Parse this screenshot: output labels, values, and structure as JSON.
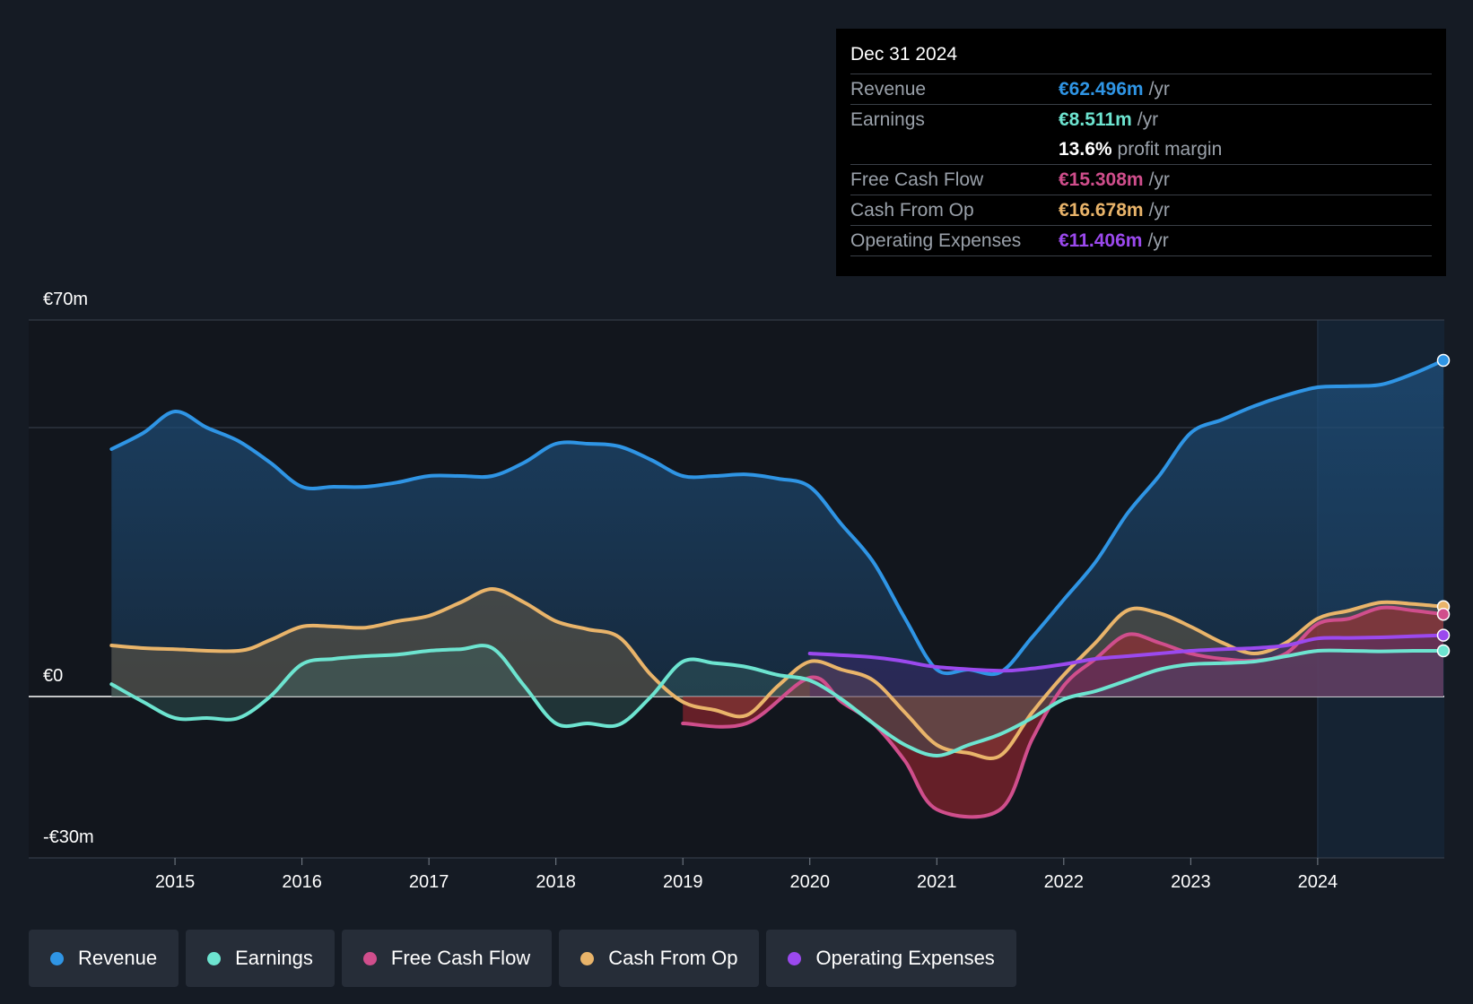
{
  "chart_data": {
    "type": "area",
    "y_axis": {
      "top_label": "€70m",
      "zero_label": "€0",
      "bottom_label": "-€30m",
      "ylim": [
        -30,
        70
      ],
      "gridlines": [
        70,
        50,
        0,
        -30
      ]
    },
    "x_ticks": [
      "2015",
      "2016",
      "2017",
      "2018",
      "2019",
      "2020",
      "2021",
      "2022",
      "2023",
      "2024"
    ],
    "xlim": [
      2014.3,
      2024.99
    ],
    "highlight_from": 2024.0,
    "series": [
      {
        "name": "Revenue",
        "color": "#2f95e5",
        "x": [
          2014.5,
          2014.75,
          2015.0,
          2015.25,
          2015.5,
          2015.75,
          2016.0,
          2016.25,
          2016.5,
          2016.75,
          2017.0,
          2017.25,
          2017.5,
          2017.75,
          2018.0,
          2018.25,
          2018.5,
          2018.75,
          2019.0,
          2019.25,
          2019.5,
          2019.75,
          2020.0,
          2020.25,
          2020.5,
          2020.75,
          2021.0,
          2021.25,
          2021.5,
          2021.75,
          2022.0,
          2022.25,
          2022.5,
          2022.75,
          2023.0,
          2023.25,
          2023.5,
          2023.75,
          2024.0,
          2024.25,
          2024.5,
          2024.75,
          2024.99
        ],
        "values": [
          46,
          49,
          53,
          50,
          47.5,
          43.5,
          39,
          39,
          39,
          39.8,
          41,
          41,
          41,
          43.5,
          47,
          47,
          46.5,
          44,
          41,
          41,
          41.3,
          40.5,
          39,
          32,
          25,
          14.5,
          5,
          5,
          4.5,
          11,
          18,
          25,
          34,
          41,
          49,
          51.5,
          54,
          56,
          57.5,
          57.7,
          58,
          60,
          62.5
        ]
      },
      {
        "name": "Earnings",
        "color": "#6de4d0",
        "x": [
          2014.5,
          2014.75,
          2015.0,
          2015.25,
          2015.5,
          2015.75,
          2016.0,
          2016.25,
          2016.5,
          2016.75,
          2017.0,
          2017.25,
          2017.5,
          2017.75,
          2018.0,
          2018.25,
          2018.5,
          2018.75,
          2019.0,
          2019.25,
          2019.5,
          2019.75,
          2020.0,
          2020.25,
          2020.5,
          2020.75,
          2021.0,
          2021.25,
          2021.5,
          2021.75,
          2022.0,
          2022.25,
          2022.5,
          2022.75,
          2023.0,
          2023.25,
          2023.5,
          2023.75,
          2024.0,
          2024.25,
          2024.5,
          2024.75,
          2024.99
        ],
        "values": [
          2.3,
          -1,
          -4,
          -4,
          -4,
          0,
          6,
          7,
          7.5,
          7.8,
          8.5,
          8.8,
          9,
          2,
          -5,
          -5,
          -5.2,
          0,
          6.5,
          6.2,
          5.5,
          4,
          3,
          -0.5,
          -5,
          -9,
          -11,
          -9,
          -7,
          -4,
          -0.5,
          1,
          3,
          5,
          6,
          6.2,
          6.5,
          7.5,
          8.5,
          8.5,
          8.4,
          8.5,
          8.5
        ]
      },
      {
        "name": "Free Cash Flow",
        "color": "#d04e8c",
        "x": [
          2019.0,
          2019.5,
          2020.0,
          2020.25,
          2020.5,
          2020.75,
          2021.0,
          2021.5,
          2021.75,
          2022.0,
          2022.25,
          2022.5,
          2022.75,
          2023.0,
          2023.25,
          2023.5,
          2023.75,
          2024.0,
          2024.25,
          2024.5,
          2024.75,
          2024.99
        ],
        "values": [
          -5,
          -5,
          3.5,
          -1,
          -5,
          -12,
          -21,
          -21,
          -8,
          2,
          7,
          11.5,
          10,
          8,
          7,
          6.7,
          8,
          13.5,
          14.5,
          16.5,
          16,
          15.3
        ]
      },
      {
        "name": "Cash From Op",
        "color": "#e9b46a",
        "x": [
          2014.5,
          2014.75,
          2015.0,
          2015.5,
          2015.75,
          2016.0,
          2016.25,
          2016.5,
          2016.75,
          2017.0,
          2017.25,
          2017.5,
          2017.75,
          2018.0,
          2018.25,
          2018.5,
          2018.75,
          2019.0,
          2019.25,
          2019.5,
          2019.75,
          2020.0,
          2020.25,
          2020.5,
          2020.75,
          2021.0,
          2021.25,
          2021.5,
          2021.75,
          2022.0,
          2022.25,
          2022.5,
          2022.75,
          2023.0,
          2023.25,
          2023.5,
          2023.75,
          2024.0,
          2024.25,
          2024.5,
          2024.75,
          2024.99
        ],
        "values": [
          9.5,
          9,
          8.8,
          8.5,
          10.5,
          13,
          13,
          12.8,
          14,
          15,
          17.5,
          20,
          17.5,
          14,
          12.5,
          11,
          4,
          -1,
          -2.5,
          -3.5,
          2,
          6.5,
          5,
          3,
          -3,
          -9,
          -10.5,
          -11,
          -3,
          4,
          10,
          16,
          15.5,
          13,
          10,
          8,
          10,
          14.5,
          16,
          17.5,
          17.2,
          16.7
        ]
      },
      {
        "name": "Operating Expenses",
        "color": "#9b49ee",
        "x": [
          2020.0,
          2020.5,
          2020.75,
          2021.0,
          2021.5,
          2021.75,
          2022.0,
          2022.25,
          2022.5,
          2022.75,
          2023.0,
          2023.25,
          2023.5,
          2023.75,
          2024.0,
          2024.25,
          2024.5,
          2024.75,
          2024.99
        ],
        "values": [
          8,
          7.3,
          6.5,
          5.5,
          4.8,
          5.2,
          6,
          7,
          7.5,
          8,
          8.5,
          8.8,
          9,
          9.5,
          10.8,
          10.9,
          11,
          11.2,
          11.4
        ]
      }
    ]
  },
  "tooltip": {
    "date": "Dec 31 2024",
    "rows": [
      {
        "label": "Revenue",
        "value": "€62.496m",
        "unit": "/yr",
        "color": "#2f95e5"
      },
      {
        "label": "Earnings",
        "value": "€8.511m",
        "unit": "/yr",
        "color": "#6de4d0"
      },
      {
        "label": "",
        "value": "13.6%",
        "unit": "profit margin",
        "color": "#ffffff"
      },
      {
        "label": "Free Cash Flow",
        "value": "€15.308m",
        "unit": "/yr",
        "color": "#d04e8c"
      },
      {
        "label": "Cash From Op",
        "value": "€16.678m",
        "unit": "/yr",
        "color": "#e9b46a"
      },
      {
        "label": "Operating Expenses",
        "value": "€11.406m",
        "unit": "/yr",
        "color": "#9b49ee"
      }
    ]
  },
  "legend": [
    {
      "label": "Revenue",
      "color": "#2f95e5"
    },
    {
      "label": "Earnings",
      "color": "#6de4d0"
    },
    {
      "label": "Free Cash Flow",
      "color": "#d04e8c"
    },
    {
      "label": "Cash From Op",
      "color": "#e9b46a"
    },
    {
      "label": "Operating Expenses",
      "color": "#9b49ee"
    }
  ]
}
